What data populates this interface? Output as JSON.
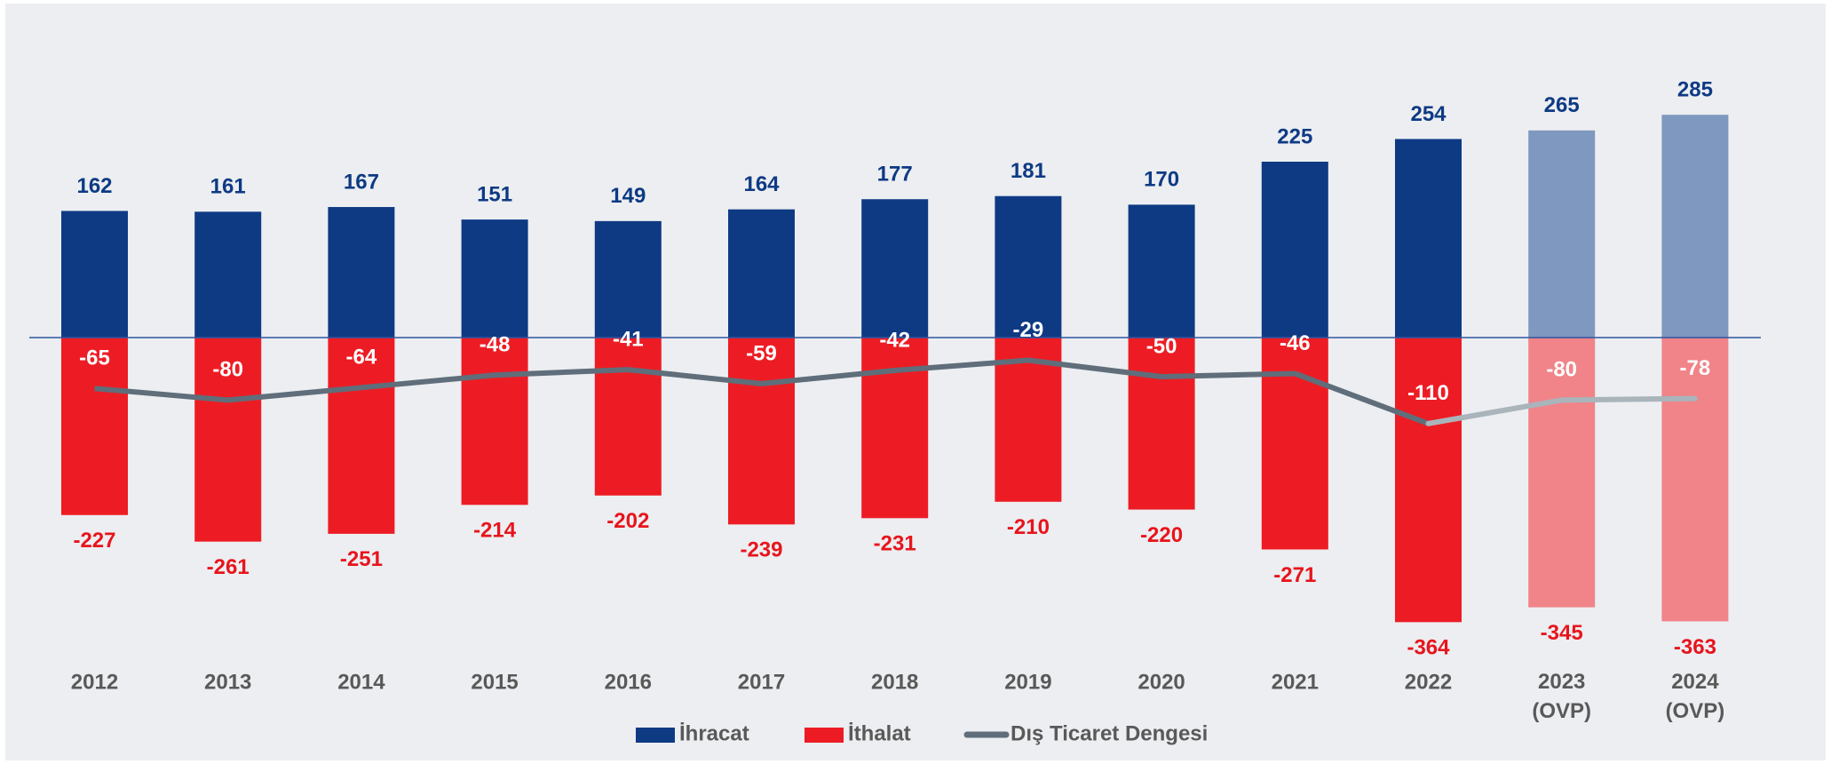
{
  "chart_data": {
    "type": "bar",
    "categories": [
      "2012",
      "2013",
      "2014",
      "2015",
      "2016",
      "2017",
      "2018",
      "2019",
      "2020",
      "2021",
      "2022",
      "2023 (OVP)",
      "2024 (OVP)"
    ],
    "series": [
      {
        "name": "İhracat",
        "type": "bar",
        "color": "#0e3a84",
        "label_color": "#0e3a84",
        "colors": [
          "#0e3a84",
          "#0e3a84",
          "#0e3a84",
          "#0e3a84",
          "#0e3a84",
          "#0e3a84",
          "#0e3a84",
          "#0e3a84",
          "#0e3a84",
          "#0e3a84",
          "#0e3a84",
          "#7f98c0",
          "#7f98c0"
        ],
        "values": [
          162,
          161,
          167,
          151,
          149,
          164,
          177,
          181,
          170,
          225,
          254,
          265,
          285
        ]
      },
      {
        "name": "İthalat",
        "type": "bar",
        "color": "#ed1c24",
        "label_color": "#e8141c",
        "colors": [
          "#ed1c24",
          "#ed1c24",
          "#ed1c24",
          "#ed1c24",
          "#ed1c24",
          "#ed1c24",
          "#ed1c24",
          "#ed1c24",
          "#ed1c24",
          "#ed1c24",
          "#ed1c24",
          "#f08489",
          "#f08489"
        ],
        "values": [
          -227,
          -261,
          -251,
          -214,
          -202,
          -239,
          -231,
          -210,
          -220,
          -271,
          -364,
          -345,
          -363
        ]
      },
      {
        "name": "Dış Ticaret Dengesi",
        "type": "line",
        "color": "#5f6e7a",
        "label_color": "#ffffff",
        "colors": [
          "#5f6e7a",
          "#5f6e7a",
          "#5f6e7a",
          "#5f6e7a",
          "#5f6e7a",
          "#5f6e7a",
          "#5f6e7a",
          "#5f6e7a",
          "#5f6e7a",
          "#5f6e7a",
          "#5f6e7a",
          "#a9b4bb",
          "#a9b4bb"
        ],
        "values": [
          -65,
          -80,
          -64,
          -48,
          -41,
          -59,
          -42,
          -29,
          -50,
          -46,
          -110,
          -80,
          -78
        ]
      }
    ],
    "ylim": [
      -400,
      400
    ],
    "grid": false,
    "legend": "bottom"
  }
}
